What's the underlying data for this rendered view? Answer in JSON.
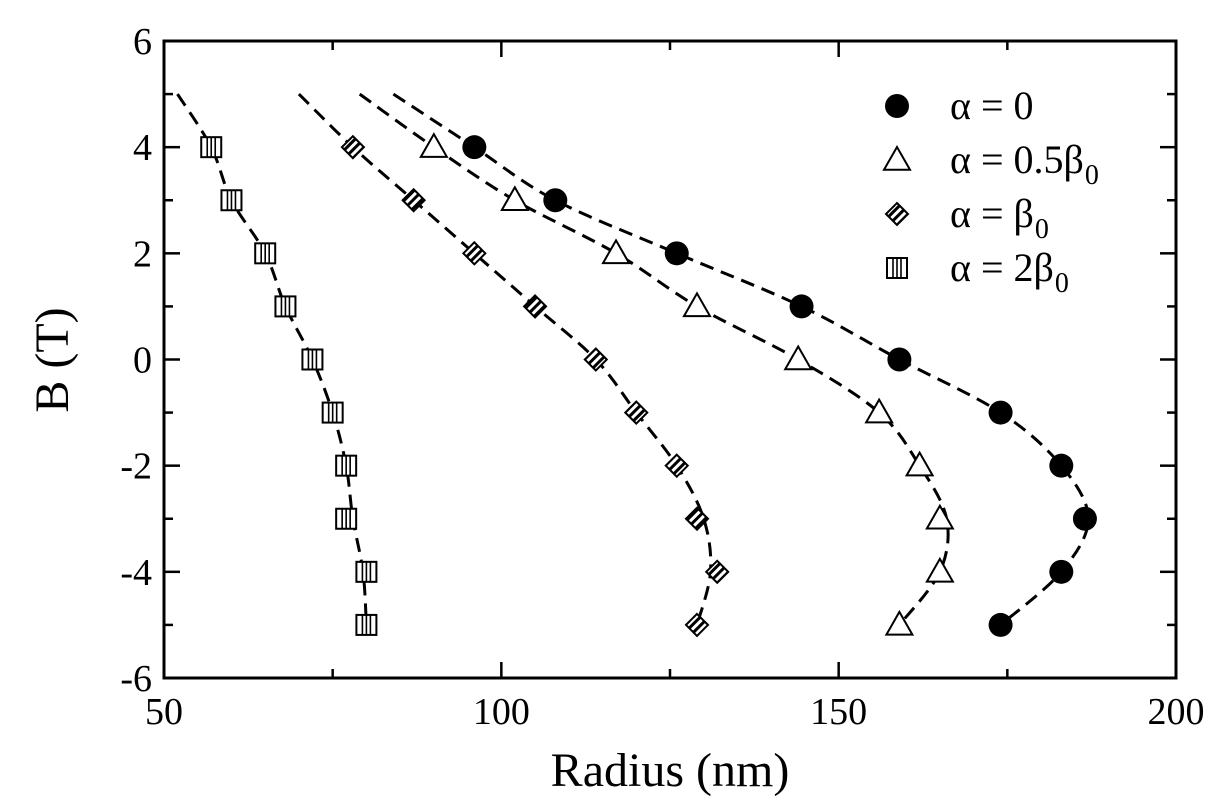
{
  "chart_data": {
    "type": "scatter",
    "xlabel": "Radius (nm)",
    "ylabel": "B (T)",
    "xlim": [
      50,
      200
    ],
    "ylim": [
      -6,
      6
    ],
    "xticks": [
      50,
      100,
      150,
      200
    ],
    "yticks": [
      -6,
      -4,
      -2,
      0,
      2,
      4,
      6
    ],
    "legend_position": "top-right",
    "fit_line_style": "dashed",
    "series": [
      {
        "name": "α = 0",
        "legend_main": "α = 0",
        "legend_sub": "",
        "marker": "filled-circle",
        "points": [
          [
            96,
            4
          ],
          [
            108,
            3
          ],
          [
            126,
            2
          ],
          [
            144.5,
            1
          ],
          [
            159,
            0
          ],
          [
            174,
            -1
          ],
          [
            183,
            -2
          ],
          [
            186.5,
            -3
          ],
          [
            183,
            -4
          ],
          [
            174,
            -5
          ]
        ],
        "curve": [
          [
            84,
            5
          ],
          [
            96,
            4
          ],
          [
            108,
            3
          ],
          [
            126,
            2
          ],
          [
            144.5,
            1
          ],
          [
            159,
            0
          ],
          [
            174,
            -1
          ],
          [
            183,
            -2
          ],
          [
            187,
            -3
          ],
          [
            183,
            -4
          ],
          [
            174,
            -5
          ]
        ]
      },
      {
        "name": "α = 0.5β0",
        "legend_main": "α = 0.5β",
        "legend_sub": "0",
        "marker": "open-triangle",
        "points": [
          [
            90,
            4
          ],
          [
            102,
            3
          ],
          [
            117,
            2
          ],
          [
            129,
            1
          ],
          [
            144,
            0
          ],
          [
            156,
            -1
          ],
          [
            162,
            -2
          ],
          [
            165,
            -3
          ],
          [
            165,
            -4
          ],
          [
            159,
            -5
          ]
        ],
        "curve": [
          [
            79,
            5
          ],
          [
            90,
            4
          ],
          [
            102,
            3
          ],
          [
            117,
            2
          ],
          [
            129,
            1
          ],
          [
            144,
            0
          ],
          [
            156,
            -1
          ],
          [
            162,
            -2
          ],
          [
            166,
            -3
          ],
          [
            165,
            -4
          ],
          [
            159,
            -5
          ]
        ]
      },
      {
        "name": "α = β0",
        "legend_main": "α = β",
        "legend_sub": "0",
        "marker": "striped-diamond",
        "points": [
          [
            78,
            4
          ],
          [
            87,
            3
          ],
          [
            96,
            2
          ],
          [
            105,
            1
          ],
          [
            114,
            0
          ],
          [
            120,
            -1
          ],
          [
            126,
            -2
          ],
          [
            129,
            -3
          ],
          [
            132,
            -4
          ],
          [
            129,
            -5
          ]
        ],
        "curve": [
          [
            70,
            5
          ],
          [
            78,
            4
          ],
          [
            87,
            3
          ],
          [
            96,
            2
          ],
          [
            105,
            1
          ],
          [
            114,
            0
          ],
          [
            120,
            -1
          ],
          [
            126,
            -2
          ],
          [
            130,
            -3
          ],
          [
            131,
            -4
          ],
          [
            129,
            -5
          ]
        ]
      },
      {
        "name": "α = 2β0",
        "legend_main": "α = 2β",
        "legend_sub": "0",
        "marker": "striped-square",
        "points": [
          [
            57,
            4
          ],
          [
            60,
            3
          ],
          [
            65,
            2
          ],
          [
            68,
            1
          ],
          [
            72,
            0
          ],
          [
            75,
            -1
          ],
          [
            77,
            -2
          ],
          [
            77,
            -3
          ],
          [
            80,
            -4
          ],
          [
            80,
            -5
          ]
        ],
        "curve": [
          [
            52,
            5
          ],
          [
            57,
            4
          ],
          [
            60,
            3
          ],
          [
            65,
            2
          ],
          [
            68,
            1
          ],
          [
            72,
            0
          ],
          [
            75,
            -1
          ],
          [
            77,
            -2
          ],
          [
            78,
            -3
          ],
          [
            79.5,
            -4
          ],
          [
            80,
            -5
          ]
        ]
      }
    ]
  }
}
